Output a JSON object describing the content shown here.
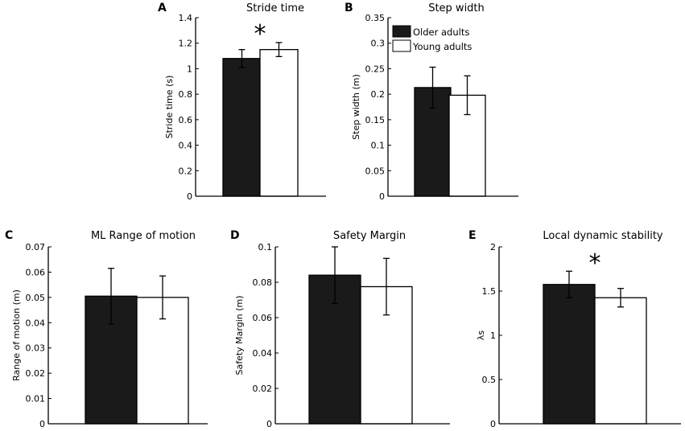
{
  "legend": {
    "older_label": "Older adults",
    "young_label": "Young adults",
    "older_color": "#1a1a1a",
    "young_color": "#ffffff"
  },
  "significance_marker": "*",
  "chart_data": [
    {
      "type": "bar",
      "panel": "A",
      "title": "Stride time",
      "ylabel": "Stride time (s)",
      "ylim": [
        0,
        1.4
      ],
      "yticks": [
        0,
        0.2,
        0.4,
        0.6,
        0.8,
        1,
        1.2,
        1.4
      ],
      "yticklabels": [
        "0",
        "0.2",
        "0.4",
        "0.6",
        "0.8",
        "1",
        "1.2",
        "1.4"
      ],
      "series": [
        {
          "name": "Older adults",
          "values": [
            1.08
          ],
          "error": [
            0.07
          ]
        },
        {
          "name": "Young adults",
          "values": [
            1.15
          ],
          "error": [
            0.055
          ]
        }
      ],
      "significant": true
    },
    {
      "type": "bar",
      "panel": "B",
      "title": "Step width",
      "ylabel": "Step width (m)",
      "ylim": [
        0,
        0.35
      ],
      "yticks": [
        0,
        0.05,
        0.1,
        0.15,
        0.2,
        0.25,
        0.3,
        0.35
      ],
      "yticklabels": [
        "0",
        "0.05",
        "0.1",
        "0.15",
        "0.2",
        "0.25",
        "0.3",
        "0.35"
      ],
      "series": [
        {
          "name": "Older adults",
          "values": [
            0.213
          ],
          "error": [
            0.04
          ]
        },
        {
          "name": "Young adults",
          "values": [
            0.198
          ],
          "error": [
            0.038
          ]
        }
      ],
      "significant": false,
      "legend_position": "top-right"
    },
    {
      "type": "bar",
      "panel": "C",
      "title": "ML Range of motion",
      "ylabel": "Range of motion (m)",
      "ylim": [
        0,
        0.07
      ],
      "yticks": [
        0,
        0.01,
        0.02,
        0.03,
        0.04,
        0.05,
        0.06,
        0.07
      ],
      "yticklabels": [
        "0",
        "0.01",
        "0.02",
        "0.03",
        "0.04",
        "0.05",
        "0.06",
        "0.07"
      ],
      "series": [
        {
          "name": "Older adults",
          "values": [
            0.0505
          ],
          "error": [
            0.011
          ]
        },
        {
          "name": "Young adults",
          "values": [
            0.05
          ],
          "error": [
            0.0085
          ]
        }
      ],
      "significant": false
    },
    {
      "type": "bar",
      "panel": "D",
      "title": "Safety Margin",
      "ylabel": "Safety Margin (m)",
      "ylim": [
        0,
        0.1
      ],
      "yticks": [
        0,
        0.02,
        0.04,
        0.06,
        0.08,
        0.1
      ],
      "yticklabels": [
        "0",
        "0.02",
        "0.04",
        "0.06",
        "0.08",
        "0.1"
      ],
      "series": [
        {
          "name": "Older adults",
          "values": [
            0.084
          ],
          "error": [
            0.016
          ]
        },
        {
          "name": "Young adults",
          "values": [
            0.0775
          ],
          "error": [
            0.016
          ]
        }
      ],
      "significant": false
    },
    {
      "type": "bar",
      "panel": "E",
      "title": "Local dynamic stability",
      "ylabel": "λs",
      "ylim": [
        0,
        2
      ],
      "yticks": [
        0,
        0.5,
        1,
        1.5,
        2
      ],
      "yticklabels": [
        "0",
        "0.5",
        "1",
        "1.5",
        "2"
      ],
      "series": [
        {
          "name": "Older adults",
          "values": [
            1.575
          ],
          "error": [
            0.15
          ]
        },
        {
          "name": "Young adults",
          "values": [
            1.425
          ],
          "error": [
            0.105
          ]
        }
      ],
      "significant": true
    }
  ]
}
